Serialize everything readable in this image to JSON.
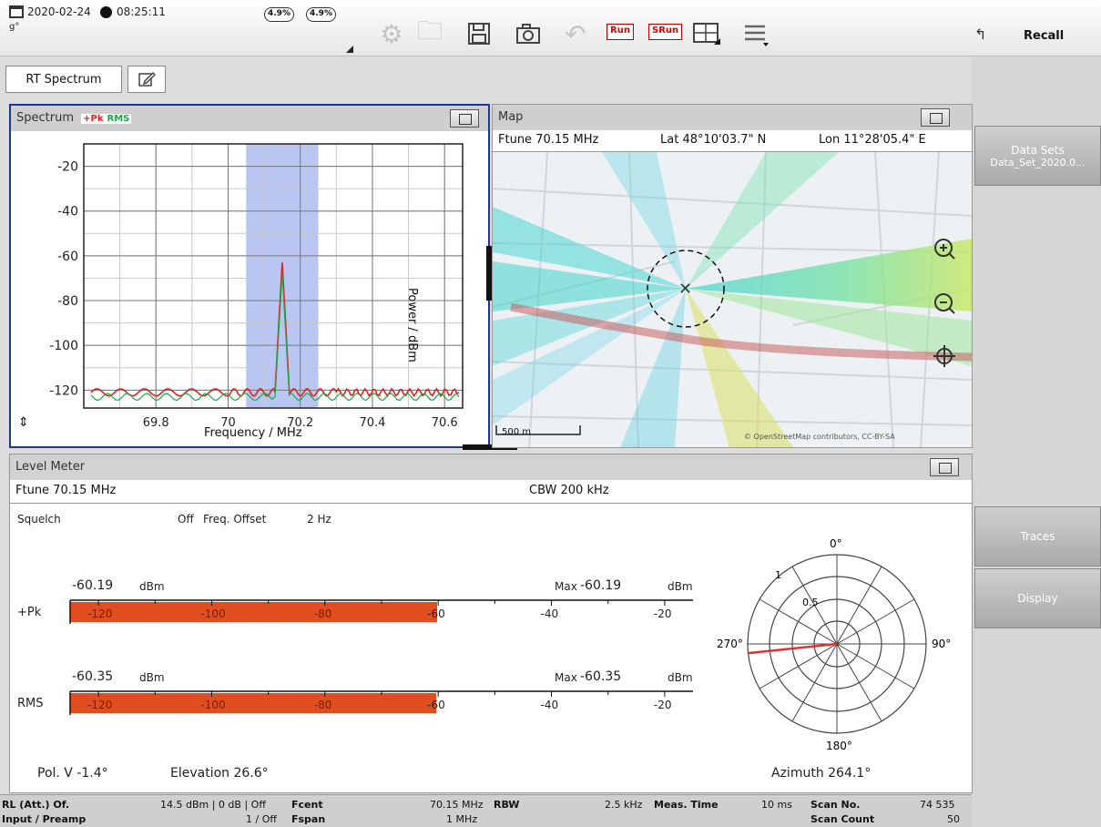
{
  "toolbar": {
    "date": "2020-02-24",
    "time": "08:25:11",
    "gps_label": "g°",
    "battery_1": "4.9%",
    "battery_2": "4.9%",
    "run_label": "Run",
    "srun_label": "SRun",
    "recall_label": "Recall"
  },
  "tabs": [
    {
      "label": "RT Spectrum"
    },
    {
      "label": ""
    }
  ],
  "side": {
    "datasets_label": "Data Sets",
    "datasets_value": "Data_Set_2020.0...",
    "traces_label": "Traces",
    "display_label": "Display"
  },
  "spectrum": {
    "title": "Spectrum",
    "legend_pk": "+Pk",
    "legend_rms": "RMS",
    "ylabel": "Power / dBm",
    "xlabel": "Frequency / MHz",
    "yticks": [
      "-20",
      "-40",
      "-60",
      "-80",
      "-100",
      "-120"
    ],
    "xticks": [
      "69.8",
      "70",
      "70.2",
      "70.4",
      "70.6"
    ]
  },
  "chart_data": {
    "type": "line",
    "xlabel": "Frequency / MHz",
    "ylabel": "Power / dBm",
    "xlim": [
      69.6,
      70.65
    ],
    "ylim": [
      -128,
      -10
    ],
    "highlight_band": [
      70.05,
      70.25
    ],
    "series": [
      {
        "name": "+Pk",
        "color": "#e02020",
        "x": [
          69.62,
          70.0,
          70.13,
          70.15,
          70.17,
          70.3,
          70.64
        ],
        "y": [
          -121,
          -121,
          -121,
          -63,
          -121,
          -121,
          -121
        ]
      },
      {
        "name": "RMS",
        "color": "#1aa84a",
        "x": [
          69.62,
          70.13,
          70.15,
          70.17,
          70.64
        ],
        "y": [
          -123,
          -123,
          -68,
          -123,
          -123
        ]
      }
    ]
  },
  "map": {
    "title": "Map",
    "ftune": "Ftune 70.15 MHz",
    "lat": "Lat 48°10'03.7\" N",
    "lon": "Lon 11°28'05.4\" E",
    "scale": "500 m",
    "attribution": "© OpenStreetMap contributors, CC-BY-SA"
  },
  "level": {
    "title": "Level Meter",
    "ftune": "Ftune 70.15 MHz",
    "cbw": "CBW 200 kHz",
    "squelch_label": "Squelch",
    "squelch_value": "Off",
    "freq_offset_label": "Freq. Offset",
    "freq_offset_value": "2 Hz",
    "pk": {
      "label": "+Pk",
      "value": "-60.19",
      "unit": "dBm",
      "max_label": "Max",
      "max_value": "-60.19",
      "max_unit": "dBm",
      "level": -60.19
    },
    "rms": {
      "label": "RMS",
      "value": "-60.35",
      "unit": "dBm",
      "max_label": "Max",
      "max_value": "-60.35",
      "max_unit": "dBm",
      "level": -60.35
    },
    "scale_labels": [
      "-120",
      "-100",
      "-80",
      "-60",
      "-40",
      "-20"
    ],
    "pol": "Pol.  V -1.4°",
    "elevation": "Elevation  26.6°",
    "azimuth": "Azimuth  264.1°",
    "polar": {
      "top": "0°",
      "right": "90°",
      "bottom": "180°",
      "left": "270°",
      "r1": "1",
      "r05": "0.5",
      "azimuth_deg": 264.1
    }
  },
  "status": {
    "rl_label": "RL (Att.) Of.",
    "rl_value": "14.5 dBm | 0 dB | Off",
    "input_label": "Input / Preamp",
    "input_value": "1 / Off",
    "fcent_label": "Fcent",
    "fcent_value": "70.15 MHz",
    "fspan_label": "Fspan",
    "fspan_value": "1 MHz",
    "rbw_label": "RBW",
    "rbw_value": "2.5 kHz",
    "meas_label": "Meas. Time",
    "meas_value": "10 ms",
    "scan_label": "Scan No.",
    "scan_value": "74 535",
    "count_label": "Scan Count",
    "count_value": "50"
  }
}
